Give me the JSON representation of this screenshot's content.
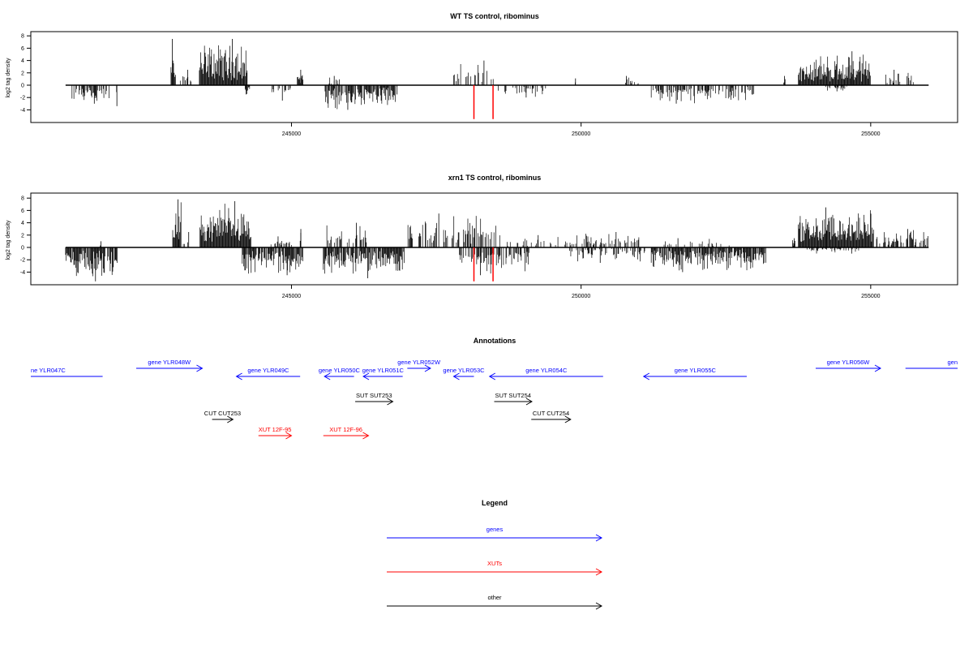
{
  "chart_data": [
    {
      "type": "bar",
      "title": "WT TS control, ribominus",
      "xlabel": "",
      "ylabel": "log2 tag density",
      "xlim": [
        240500,
        256500
      ],
      "ylim": [
        -5.5,
        9
      ],
      "yticks": [
        -4,
        -2,
        0,
        2,
        4,
        6,
        8
      ],
      "xticks": [
        245000,
        250000,
        255000
      ],
      "xtick_labels": [
        "245000",
        "250000",
        "255000"
      ],
      "axis_line": [
        241100,
        256000
      ],
      "markers": {
        "color": "#ff0000",
        "positions": [
          248150,
          248480
        ],
        "value": -5.5
      },
      "regions": [
        {
          "start": 241200,
          "end": 241850,
          "sign": -1,
          "max": 3.0,
          "density": 0.6
        },
        {
          "start": 241980,
          "end": 241990,
          "sign": -1,
          "max": 3.4,
          "density": 1
        },
        {
          "start": 242920,
          "end": 243000,
          "sign": 1,
          "max": 7.5,
          "density": 1
        },
        {
          "start": 243080,
          "end": 243300,
          "sign": 1,
          "max": 2.5,
          "density": 0.3
        },
        {
          "start": 243410,
          "end": 244240,
          "sign": 1,
          "max": 7.5,
          "density": 1
        },
        {
          "start": 244200,
          "end": 244280,
          "sign": -1,
          "max": 1.5,
          "density": 1
        },
        {
          "start": 244650,
          "end": 245000,
          "sign": -1,
          "max": 2.5,
          "density": 0.4
        },
        {
          "start": 245100,
          "end": 245200,
          "sign": 1,
          "max": 2.5,
          "density": 1
        },
        {
          "start": 245580,
          "end": 246800,
          "sign": -1,
          "max": 4.0,
          "density": 0.8
        },
        {
          "start": 245650,
          "end": 245850,
          "sign": 1,
          "max": 1.5,
          "density": 0.5
        },
        {
          "start": 246820,
          "end": 246830,
          "sign": -1,
          "max": 1.5,
          "density": 1
        },
        {
          "start": 247800,
          "end": 248500,
          "sign": 1,
          "max": 4.0,
          "density": 0.35
        },
        {
          "start": 248550,
          "end": 249400,
          "sign": -1,
          "max": 2.0,
          "density": 0.3
        },
        {
          "start": 249900,
          "end": 249910,
          "sign": 1,
          "max": 1.1,
          "density": 1
        },
        {
          "start": 250700,
          "end": 251000,
          "sign": 1,
          "max": 1.5,
          "density": 0.3
        },
        {
          "start": 251200,
          "end": 253000,
          "sign": -1,
          "max": 3.0,
          "density": 0.55
        },
        {
          "start": 253500,
          "end": 253530,
          "sign": 1,
          "max": 1.5,
          "density": 1
        },
        {
          "start": 253750,
          "end": 255000,
          "sign": 1,
          "max": 5.5,
          "density": 1
        },
        {
          "start": 254200,
          "end": 254600,
          "sign": -1,
          "max": 1.0,
          "density": 0.4
        },
        {
          "start": 255250,
          "end": 255750,
          "sign": 1,
          "max": 2.5,
          "density": 0.4
        }
      ]
    },
    {
      "type": "bar",
      "title": "xrn1 TS control, ribominus",
      "xlabel": "",
      "ylabel": "log2 tag density",
      "xlim": [
        240500,
        256500
      ],
      "ylim": [
        -5.5,
        9
      ],
      "yticks": [
        -4,
        -2,
        0,
        2,
        4,
        6,
        8
      ],
      "xticks": [
        245000,
        250000,
        255000
      ],
      "xtick_labels": [
        "245000",
        "250000",
        "255000"
      ],
      "axis_line": [
        241100,
        256000
      ],
      "markers": {
        "color": "#ff0000",
        "positions": [
          248150,
          248480
        ],
        "value": -5.5
      },
      "regions": [
        {
          "start": 241100,
          "end": 242000,
          "sign": -1,
          "max": 5.5,
          "density": 0.9
        },
        {
          "start": 241700,
          "end": 241720,
          "sign": 1,
          "max": 1.0,
          "density": 1
        },
        {
          "start": 242950,
          "end": 243100,
          "sign": 1,
          "max": 7.8,
          "density": 1
        },
        {
          "start": 243100,
          "end": 243300,
          "sign": 1,
          "max": 2.5,
          "density": 0.3
        },
        {
          "start": 243420,
          "end": 244300,
          "sign": 1,
          "max": 7.5,
          "density": 1
        },
        {
          "start": 244150,
          "end": 245200,
          "sign": -1,
          "max": 4.5,
          "density": 0.9
        },
        {
          "start": 244580,
          "end": 245000,
          "sign": 1,
          "max": 1.8,
          "density": 0.3
        },
        {
          "start": 245150,
          "end": 245170,
          "sign": 1,
          "max": 3.0,
          "density": 1
        },
        {
          "start": 245550,
          "end": 246950,
          "sign": -1,
          "max": 5.0,
          "density": 0.9
        },
        {
          "start": 245600,
          "end": 246300,
          "sign": 1,
          "max": 4.0,
          "density": 0.45
        },
        {
          "start": 247000,
          "end": 248600,
          "sign": 1,
          "max": 5.5,
          "density": 0.5
        },
        {
          "start": 247900,
          "end": 249100,
          "sign": -1,
          "max": 4.5,
          "density": 0.55
        },
        {
          "start": 248700,
          "end": 249600,
          "sign": 1,
          "max": 2.0,
          "density": 0.25
        },
        {
          "start": 249600,
          "end": 251000,
          "sign": 1,
          "max": 2.5,
          "density": 0.35
        },
        {
          "start": 249800,
          "end": 251100,
          "sign": -1,
          "max": 2.5,
          "density": 0.35
        },
        {
          "start": 251200,
          "end": 253200,
          "sign": -1,
          "max": 4.0,
          "density": 0.85
        },
        {
          "start": 251400,
          "end": 252600,
          "sign": 1,
          "max": 1.5,
          "density": 0.2
        },
        {
          "start": 253650,
          "end": 253700,
          "sign": 1,
          "max": 1.5,
          "density": 1
        },
        {
          "start": 253750,
          "end": 255050,
          "sign": 1,
          "max": 6.5,
          "density": 1
        },
        {
          "start": 253900,
          "end": 254900,
          "sign": -1,
          "max": 1.0,
          "density": 0.3
        },
        {
          "start": 255100,
          "end": 256000,
          "sign": 1,
          "max": 3.0,
          "density": 0.55
        }
      ]
    }
  ],
  "annotations": {
    "title": "Annotations",
    "genes_color": "#0000ff",
    "xuts_color": "#ff0000",
    "other_color": "#000000",
    "rows": [
      {
        "label": "gene YLR048W",
        "strand": "+",
        "color": "#0000ff",
        "start": 242320,
        "end": 243460,
        "level": 0
      },
      {
        "label": "gene YLR052W",
        "strand": "+",
        "color": "#0000ff",
        "start": 247000,
        "end": 247400,
        "level": 0
      },
      {
        "label": "gene YLR056W",
        "strand": "+",
        "color": "#0000ff",
        "start": 254050,
        "end": 255170,
        "level": 0
      },
      {
        "label": "ne YLR047C",
        "strand": "-",
        "color": "#0000ff",
        "start": 240500,
        "end": 241740,
        "level": 1
      },
      {
        "label": "gene YLR049C",
        "strand": "-",
        "color": "#0000ff",
        "start": 244050,
        "end": 245150,
        "level": 1
      },
      {
        "label": "gene YLR050C",
        "strand": "-",
        "color": "#0000ff",
        "start": 245570,
        "end": 246080,
        "level": 1
      },
      {
        "label": "gene YLR051C",
        "strand": "-",
        "color": "#0000ff",
        "start": 246240,
        "end": 246920,
        "level": 1
      },
      {
        "label": "gene YLR053C",
        "strand": "-",
        "color": "#0000ff",
        "start": 247800,
        "end": 248150,
        "level": 1
      },
      {
        "label": "gene YLR054C",
        "strand": "-",
        "color": "#0000ff",
        "start": 248420,
        "end": 250380,
        "level": 1
      },
      {
        "label": "gene YLR055C",
        "strand": "-",
        "color": "#0000ff",
        "start": 251080,
        "end": 252860,
        "level": 1
      },
      {
        "label": "gen",
        "strand": "-",
        "color": "#0000ff",
        "start": 255600,
        "end": 256500,
        "level": 0
      },
      {
        "label": "SUT SUT253",
        "strand": "+",
        "color": "#000000",
        "start": 246100,
        "end": 246750,
        "level": 2
      },
      {
        "label": "SUT SUT254",
        "strand": "+",
        "color": "#000000",
        "start": 248500,
        "end": 249150,
        "level": 2
      },
      {
        "label": "CUT CUT253",
        "strand": "+",
        "color": "#000000",
        "start": 243630,
        "end": 243990,
        "level": 3
      },
      {
        "label": "CUT CUT254",
        "strand": "+",
        "color": "#000000",
        "start": 249140,
        "end": 249820,
        "level": 3
      },
      {
        "label": "XUT 12F-95",
        "strand": "+",
        "color": "#ff0000",
        "start": 244430,
        "end": 245000,
        "level": 4
      },
      {
        "label": "XUT 12F-96",
        "strand": "+",
        "color": "#ff0000",
        "start": 245550,
        "end": 246330,
        "level": 4
      }
    ]
  },
  "legend": {
    "title": "Legend",
    "items": [
      {
        "label": "genes",
        "color": "#0000ff"
      },
      {
        "label": "XUTs",
        "color": "#ff0000"
      },
      {
        "label": "other",
        "color": "#000000"
      }
    ]
  }
}
